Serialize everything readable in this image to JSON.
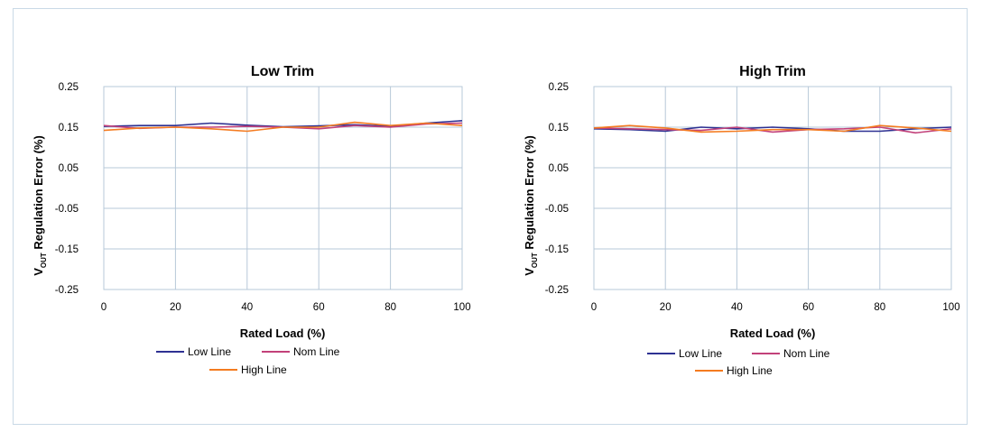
{
  "chart_data": [
    {
      "type": "line",
      "title": "Low Trim",
      "xlabel": "Rated Load (%)",
      "ylabel_main": "V",
      "ylabel_sub": "OUT",
      "ylabel_rest": " Regulation Error (%)",
      "xlim": [
        0,
        100
      ],
      "ylim": [
        -0.25,
        0.25
      ],
      "xticks": [
        0,
        20,
        40,
        60,
        80,
        100
      ],
      "xtick_labels": [
        "0",
        "20",
        "40",
        "60",
        "80",
        "100"
      ],
      "yticks": [
        0.25,
        0.15,
        0.05,
        -0.05,
        -0.15,
        -0.25
      ],
      "ytick_labels": [
        "0.25",
        "0.15",
        "0.05",
        "-0.05",
        "-0.15",
        "-0.25"
      ],
      "grid": true,
      "legend_position": "bottom",
      "x": [
        0,
        10,
        20,
        30,
        40,
        50,
        60,
        70,
        80,
        90,
        100
      ],
      "series": [
        {
          "name": "Low Line",
          "color": "#2e3192",
          "values": [
            0.152,
            0.154,
            0.154,
            0.16,
            0.155,
            0.151,
            0.153,
            0.156,
            0.152,
            0.16,
            0.166
          ]
        },
        {
          "name": "Nom Line",
          "color": "#c2417a",
          "values": [
            0.154,
            0.147,
            0.15,
            0.15,
            0.152,
            0.15,
            0.146,
            0.154,
            0.15,
            0.158,
            0.16
          ]
        },
        {
          "name": "High Line",
          "color": "#f47b20",
          "values": [
            0.142,
            0.148,
            0.15,
            0.146,
            0.14,
            0.15,
            0.15,
            0.162,
            0.154,
            0.16,
            0.154
          ]
        }
      ]
    },
    {
      "type": "line",
      "title": "High Trim",
      "xlabel": "Rated Load (%)",
      "ylabel_main": "V",
      "ylabel_sub": "OUT",
      "ylabel_rest": " Regulation Error (%)",
      "xlim": [
        0,
        100
      ],
      "ylim": [
        -0.25,
        0.25
      ],
      "xticks": [
        0,
        20,
        40,
        60,
        80,
        100
      ],
      "xtick_labels": [
        "0",
        "20",
        "40",
        "60",
        "80",
        "100"
      ],
      "yticks": [
        0.25,
        0.15,
        0.05,
        -0.05,
        -0.15,
        -0.25
      ],
      "ytick_labels": [
        "0.25",
        "0.15",
        "0.05",
        "-0.05",
        "-0.15",
        "-0.25"
      ],
      "grid": true,
      "legend_position": "bottom",
      "x": [
        0,
        10,
        20,
        30,
        40,
        50,
        60,
        70,
        80,
        90,
        100
      ],
      "series": [
        {
          "name": "Low Line",
          "color": "#2e3192",
          "values": [
            0.146,
            0.144,
            0.14,
            0.15,
            0.146,
            0.15,
            0.146,
            0.14,
            0.14,
            0.146,
            0.15
          ]
        },
        {
          "name": "Nom Line",
          "color": "#c2417a",
          "values": [
            0.148,
            0.146,
            0.144,
            0.142,
            0.15,
            0.138,
            0.144,
            0.146,
            0.15,
            0.136,
            0.146
          ]
        },
        {
          "name": "High Line",
          "color": "#f47b20",
          "values": [
            0.148,
            0.154,
            0.148,
            0.138,
            0.14,
            0.144,
            0.144,
            0.14,
            0.154,
            0.148,
            0.14
          ]
        }
      ]
    }
  ]
}
